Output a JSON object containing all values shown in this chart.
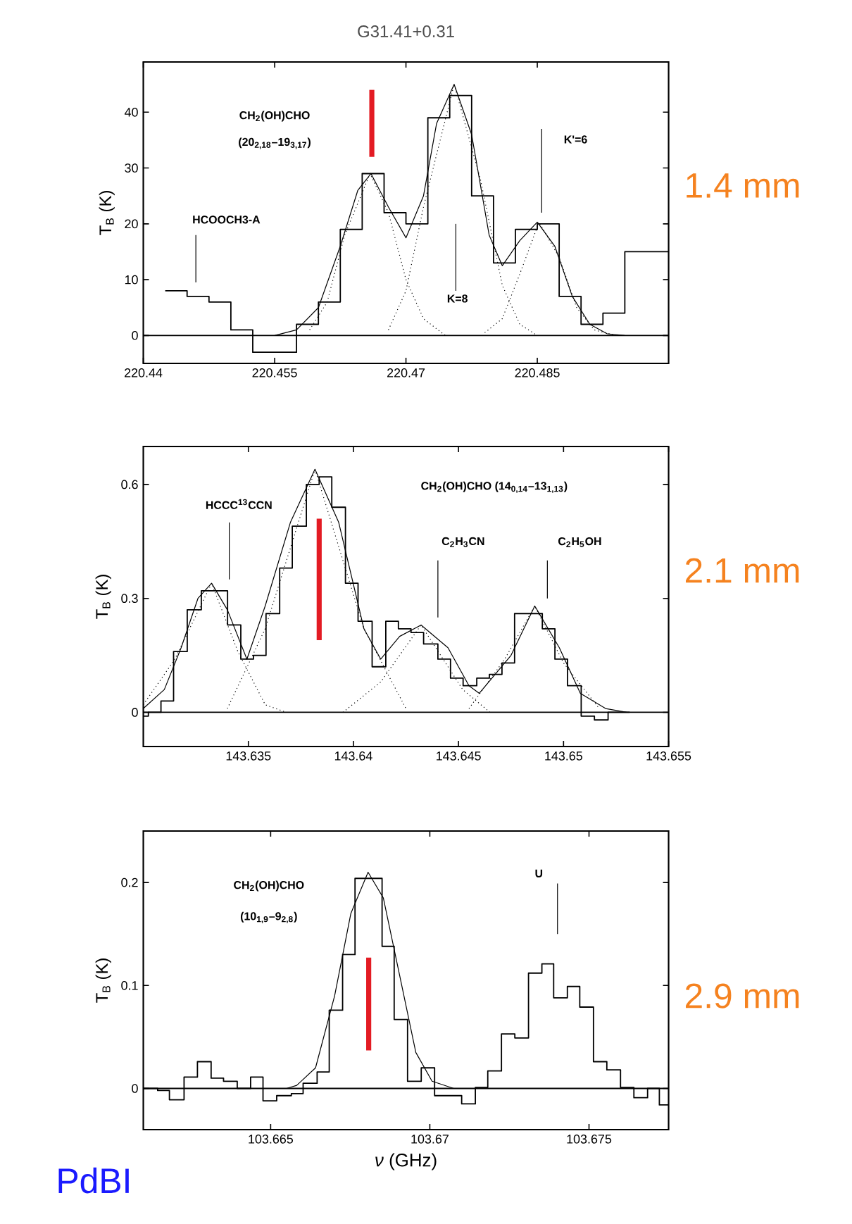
{
  "chart_data": [
    {
      "type": "step",
      "title": "G31.41+0.31",
      "ylabel": "T$_{B}$ (K)",
      "xlim": [
        220.44,
        220.5
      ],
      "ylim": [
        -5,
        49
      ],
      "xticks": [
        220.44,
        220.455,
        220.47,
        220.485
      ],
      "yticks": [
        0,
        10,
        20,
        30,
        40
      ],
      "series": [
        {
          "type": "step",
          "color": "#000000",
          "x": [
            220.4425,
            220.445,
            220.4475,
            220.45,
            220.4525,
            220.455,
            220.4575,
            220.46,
            220.4625,
            220.465,
            220.4675,
            220.47,
            220.4725,
            220.475,
            220.4775,
            220.48,
            220.4825,
            220.485,
            220.4875,
            220.49,
            220.4925,
            220.495,
            220.4975,
            220.5
          ],
          "values": [
            8,
            7,
            6,
            1,
            -3,
            -3,
            2,
            6,
            19,
            29,
            22,
            20,
            39,
            43,
            25,
            13,
            19,
            20,
            7,
            2,
            4,
            15,
            15,
            15
          ]
        },
        {
          "type": "line",
          "color": "#000000",
          "x": [
            220.455,
            220.4575,
            220.46,
            220.4625,
            220.4645,
            220.466,
            220.468,
            220.47,
            220.472,
            220.4735,
            220.4755,
            220.4775,
            220.4795,
            220.481,
            220.483,
            220.485,
            220.487,
            220.489,
            220.491,
            220.493,
            220.495
          ],
          "values": [
            0,
            1,
            5,
            16,
            26,
            29,
            23,
            17.5,
            25,
            38,
            45,
            36,
            18,
            12.5,
            17,
            20.3,
            16,
            7,
            2,
            0.3,
            0
          ]
        },
        {
          "type": "line",
          "line_style": "dotted",
          "color": "#000000",
          "x": [
            220.459,
            220.461,
            220.463,
            220.4659,
            220.468,
            220.47,
            220.472,
            220.4745
          ],
          "values": [
            1,
            6,
            18,
            29,
            22,
            10,
            3,
            0
          ]
        },
        {
          "type": "line",
          "line_style": "dotted",
          "color": "#000000",
          "x": [
            220.468,
            220.47,
            220.472,
            220.4755,
            220.4785,
            220.481,
            220.483,
            220.485
          ],
          "values": [
            1,
            8,
            23,
            45,
            28,
            9,
            2,
            0
          ]
        },
        {
          "type": "line",
          "line_style": "dotted",
          "color": "#000000",
          "x": [
            220.479,
            220.481,
            220.483,
            220.4852,
            220.4875,
            220.4895,
            220.4915,
            220.494
          ],
          "values": [
            0.5,
            3,
            11,
            20.3,
            14,
            5,
            1,
            0
          ]
        },
        {
          "type": "line",
          "color": "#e31b23",
          "x": [
            220.4661,
            220.4661
          ],
          "values": [
            32,
            44
          ]
        },
        {
          "type": "line",
          "color": "#000000",
          "x": [
            220.446,
            220.446
          ],
          "values": [
            9.5,
            18
          ]
        },
        {
          "type": "line",
          "color": "#000000",
          "x": [
            220.4757,
            220.4757
          ],
          "values": [
            8,
            20
          ]
        },
        {
          "type": "line",
          "color": "#000000",
          "x": [
            220.4855,
            220.4855
          ],
          "values": [
            22,
            37
          ]
        }
      ],
      "ref_lines": [
        {
          "axis": "y",
          "value": 0
        }
      ],
      "annotations": [
        "1.4 mm",
        "CH$_{2}$(OH)CHO",
        "(20$_{2,18}$–19$_{3,17}$)",
        "HCOOCH3-A",
        "K=8",
        "K'=6"
      ]
    },
    {
      "type": "step",
      "ylabel": "T$_{B}$ (K)",
      "xlim": [
        143.63,
        143.655
      ],
      "ylim": [
        -0.09,
        0.7
      ],
      "xticks": [
        143.635,
        143.64,
        143.645,
        143.65,
        143.655
      ],
      "yticks": [
        0,
        0.3,
        0.6
      ],
      "series": [
        {
          "type": "step",
          "color": "#000000",
          "x": [
            143.63,
            143.63024,
            143.63084,
            143.63144,
            143.63209,
            143.63276,
            143.63337,
            143.63401,
            143.63464,
            143.63524,
            143.63584,
            143.63649,
            143.63709,
            143.63776,
            143.63837,
            143.63897,
            143.63962,
            143.64022,
            143.64089,
            143.64154,
            143.64214,
            143.64274,
            143.64334,
            143.64402,
            143.64462,
            143.64522,
            143.64587,
            143.64647,
            143.64707,
            143.64767,
            143.64834,
            143.64899,
            143.64959,
            143.65019,
            143.65084,
            143.65147,
            143.65212,
            143.65315
          ],
          "values": [
            -0.01,
            0.0,
            0.03,
            0.16,
            0.27,
            0.32,
            0.32,
            0.23,
            0.14,
            0.15,
            0.26,
            0.38,
            0.49,
            0.6,
            0.62,
            0.54,
            0.34,
            0.24,
            0.12,
            0.24,
            0.22,
            0.21,
            0.18,
            0.14,
            0.09,
            0.07,
            0.09,
            0.1,
            0.13,
            0.26,
            0.26,
            0.22,
            0.14,
            0.07,
            -0.01,
            -0.02,
            0.0,
            0.0
          ]
        },
        {
          "type": "line",
          "color": "#000000",
          "x": [
            143.63,
            143.631,
            143.6318,
            143.6326,
            143.63325,
            143.634,
            143.63493,
            143.6358,
            143.637,
            143.63817,
            143.6393,
            143.6405,
            143.6413,
            143.6422,
            143.64322,
            143.6445,
            143.6455,
            143.64599,
            143.6475,
            143.64863,
            143.6498,
            143.6508,
            143.652,
            143.653
          ],
          "values": [
            0.01,
            0.06,
            0.17,
            0.3,
            0.34,
            0.27,
            0.14,
            0.28,
            0.5,
            0.64,
            0.5,
            0.22,
            0.14,
            0.2,
            0.23,
            0.17,
            0.07,
            0.05,
            0.15,
            0.28,
            0.17,
            0.05,
            0.01,
            0
          ]
        },
        {
          "type": "line",
          "line_style": "dotted",
          "color": "#000000",
          "x": [
            143.63,
            143.6315,
            143.63325,
            143.6345,
            143.6358,
            143.6368
          ],
          "values": [
            0.02,
            0.14,
            0.34,
            0.16,
            0.02,
            0
          ]
        },
        {
          "type": "line",
          "line_style": "dotted",
          "color": "#000000",
          "x": [
            143.634,
            143.6358,
            143.63817,
            143.6405,
            143.6425
          ],
          "values": [
            0.01,
            0.22,
            0.64,
            0.22,
            0.01
          ]
        },
        {
          "type": "line",
          "line_style": "dotted",
          "color": "#000000",
          "x": [
            143.6395,
            143.6413,
            143.64322,
            143.6452,
            143.6465
          ],
          "values": [
            0,
            0.08,
            0.23,
            0.06,
            0
          ]
        },
        {
          "type": "line",
          "line_style": "dotted",
          "color": "#000000",
          "x": [
            143.6455,
            143.6472,
            143.64863,
            143.65,
            143.6517
          ],
          "values": [
            0.01,
            0.14,
            0.28,
            0.13,
            0.01
          ]
        },
        {
          "type": "line",
          "color": "#e31b23",
          "x": [
            143.63837,
            143.63837
          ],
          "values": [
            0.19,
            0.51
          ]
        },
        {
          "type": "line",
          "color": "#000000",
          "x": [
            143.63409,
            143.63409
          ],
          "values": [
            0.35,
            0.5
          ]
        },
        {
          "type": "line",
          "color": "#000000",
          "x": [
            143.64402,
            143.64402
          ],
          "values": [
            0.25,
            0.4
          ]
        },
        {
          "type": "line",
          "color": "#000000",
          "x": [
            143.64923,
            143.64923
          ],
          "values": [
            0.3,
            0.4
          ]
        }
      ],
      "ref_lines": [
        {
          "axis": "y",
          "value": 0
        }
      ],
      "annotations": [
        "2.1 mm",
        "CH$_{2}$(OH)CHO (14$_{0,14}$–13$_{1,13}$)",
        "HCCC$^{13}$CCN",
        "C$_{2}$H$_{3}$CN",
        "C$_{2}$H$_{5}$OH"
      ]
    },
    {
      "type": "step",
      "ylabel": "T$_{B}$ (K)",
      "xlabel": "*ν* (GHz)",
      "xlim": [
        103.661,
        103.6775
      ],
      "ylim": [
        -0.04,
        0.25
      ],
      "xticks": [
        103.665,
        103.67,
        103.675
      ],
      "yticks": [
        0,
        0.1,
        0.2
      ],
      "series": [
        {
          "type": "step",
          "color": "#000000",
          "x": [
            103.661,
            103.66145,
            103.66182,
            103.66228,
            103.6627,
            103.66313,
            103.66352,
            103.66395,
            103.66437,
            103.66476,
            103.66519,
            103.66565,
            103.66602,
            103.66646,
            103.66684,
            103.66726,
            103.66765,
            103.66806,
            103.6685,
            103.66888,
            103.6693,
            103.66973,
            103.67015,
            103.67058,
            103.671,
            103.67143,
            103.67182,
            103.67225,
            103.67267,
            103.6731,
            103.67352,
            103.67389,
            103.67432,
            103.67471,
            103.67514,
            103.67556,
            103.67599,
            103.67641,
            103.67684,
            103.67721,
            103.6775
          ],
          "values": [
            0.0,
            -0.002,
            -0.011,
            0.011,
            0.026,
            0.01,
            0.007,
            0.0,
            0.011,
            -0.012,
            -0.007,
            -0.005,
            0.005,
            0.016,
            0.076,
            0.13,
            0.204,
            0.204,
            0.138,
            0.067,
            0.007,
            0.02,
            -0.007,
            -0.007,
            -0.015,
            0.001,
            0.017,
            0.053,
            0.049,
            0.112,
            0.121,
            0.088,
            0.099,
            0.079,
            0.026,
            0.018,
            0.001,
            -0.009,
            0.0,
            -0.016,
            -0.016
          ]
        },
        {
          "type": "line",
          "color": "#000000",
          "x": [
            103.661,
            103.6655,
            103.66582,
            103.66641,
            103.66701,
            103.66752,
            103.66806,
            103.66854,
            103.66905,
            103.66956,
            103.67007,
            103.67075
          ],
          "values": [
            0,
            0,
            0.003,
            0.02,
            0.09,
            0.17,
            0.21,
            0.185,
            0.11,
            0.035,
            0.007,
            0
          ]
        },
        {
          "type": "line",
          "color": "#e31b23",
          "x": [
            103.66808,
            103.66808
          ],
          "values": [
            0.037,
            0.127
          ]
        },
        {
          "type": "line",
          "color": "#000000",
          "x": [
            103.67401,
            103.67401
          ],
          "values": [
            0.15,
            0.199
          ]
        }
      ],
      "ref_lines": [
        {
          "axis": "y",
          "value": 0
        }
      ],
      "annotations": [
        "2.9 mm",
        "PdBI",
        "CH$_{2}$(OH)CHO",
        "(10$_{1,9}$–9$_{2,8}$)",
        "U"
      ]
    }
  ]
}
